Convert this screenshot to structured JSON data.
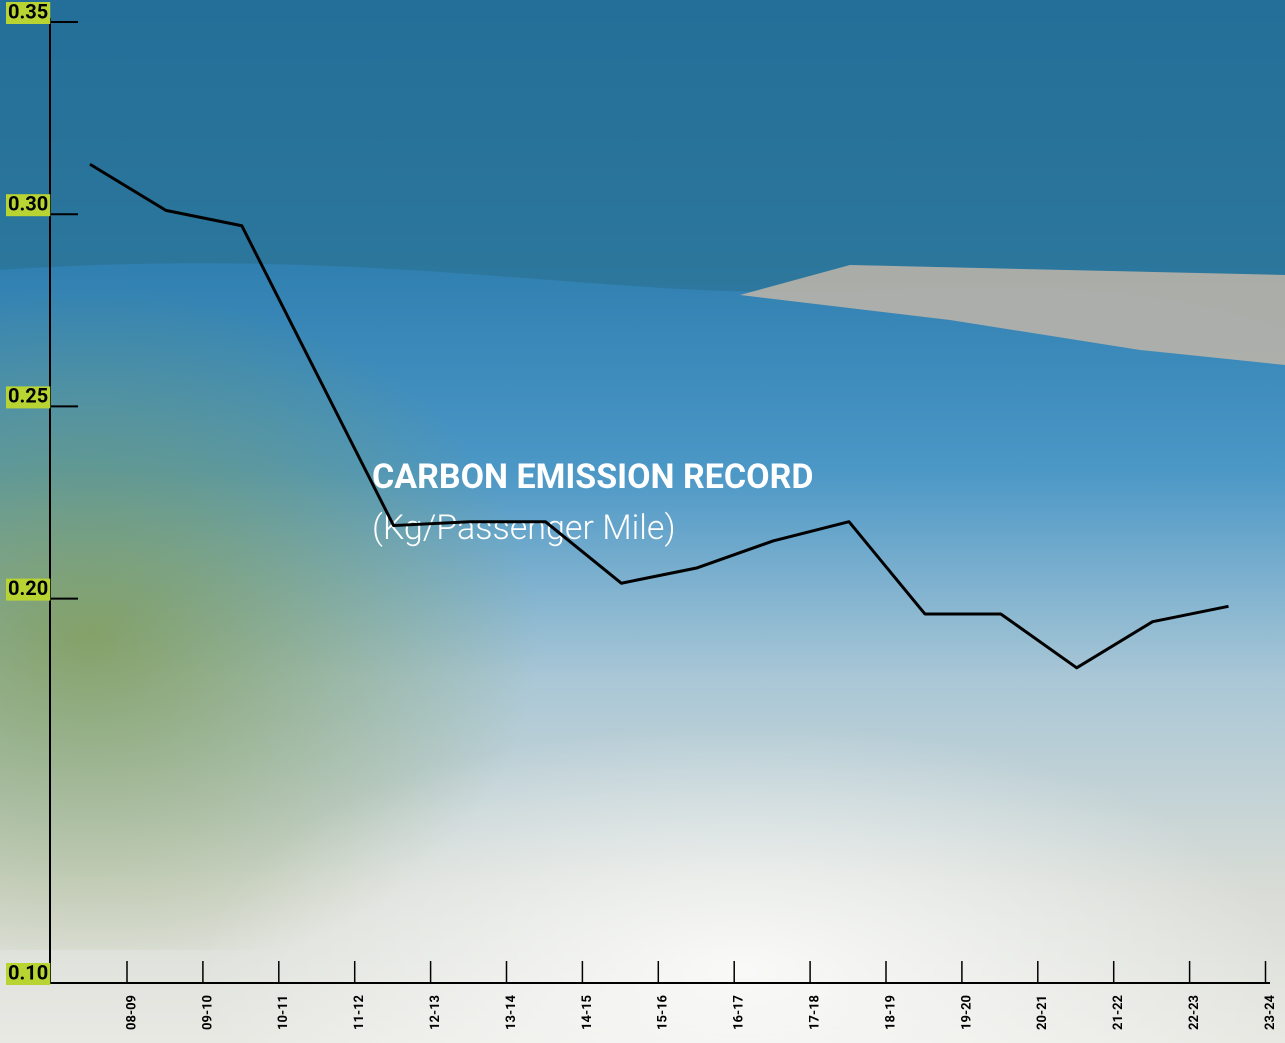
{
  "chart_data": {
    "type": "line",
    "title": "CARBON EMISSION RECORD",
    "subtitle": "(Kg/Passenger Mile)",
    "categories": [
      "08-09",
      "09-10",
      "10-11",
      "11-12",
      "12-13",
      "13-14",
      "14-15",
      "15-16",
      "16-17",
      "17-18",
      "18-19",
      "19-20",
      "20-21",
      "21-22",
      "22-23",
      "23-24"
    ],
    "values": [
      0.313,
      0.301,
      0.297,
      0.258,
      0.219,
      0.22,
      0.22,
      0.204,
      0.208,
      0.215,
      0.22,
      0.196,
      0.196,
      0.182,
      0.194,
      0.198
    ],
    "color": "#000000",
    "ylim": [
      0.1,
      0.35
    ],
    "yticks": [
      {
        "value": 0.1,
        "label": "0.10"
      },
      {
        "value": 0.2,
        "label": "0.20"
      },
      0.25,
      {
        "value": 0.3,
        "label": "0.30"
      },
      0.35
    ]
  }
}
